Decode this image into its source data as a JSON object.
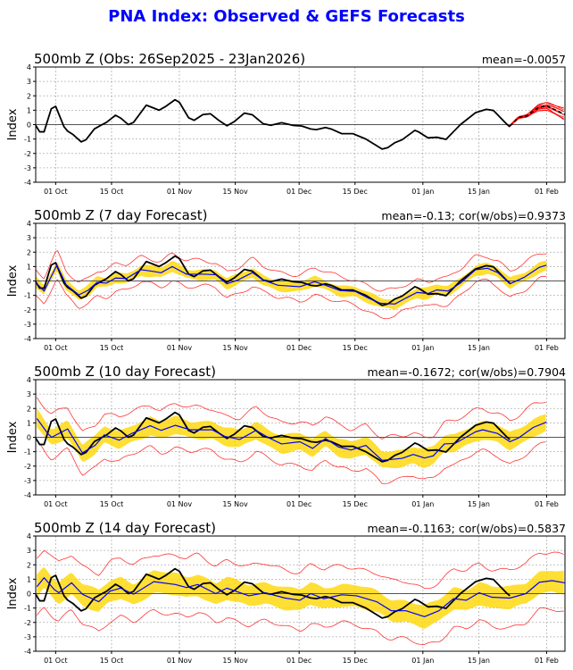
{
  "title": "PNA Index: Observed & GEFS Forecasts",
  "colors": {
    "title": "#0000ff",
    "observed": "#000000",
    "forecast": "#0000ff",
    "band": "#ffd700",
    "envelope": "#ff0000",
    "grid": "#b0b0b0"
  },
  "chart_data": [
    {
      "type": "line",
      "title": "500mb Z (Obs: 26Sep2025 - 23Jan2026)",
      "stat": "mean=-0.0057",
      "ylabel": "Index",
      "ylim": [
        -4,
        4
      ],
      "yticks": [
        -4,
        -3,
        -2,
        -1,
        0,
        1,
        2,
        3,
        4
      ],
      "x_unit": "days since 26Sep2025",
      "xlim": [
        0,
        132.6
      ],
      "xticks": [
        {
          "day": 5,
          "label": "01 Oct"
        },
        {
          "day": 19,
          "label": "15 Oct"
        },
        {
          "day": 36,
          "label": "01 Nov"
        },
        {
          "day": 50,
          "label": "15 Nov"
        },
        {
          "day": 66,
          "label": "01 Dec"
        },
        {
          "day": 80,
          "label": "15 Dec"
        },
        {
          "day": 97,
          "label": "01 Jan"
        },
        {
          "day": 111,
          "label": "15 Jan"
        },
        {
          "day": 128,
          "label": "01 Feb"
        }
      ],
      "grid": true,
      "observed": [
        [
          0,
          -0.05
        ],
        [
          1,
          -0.5
        ],
        [
          2.1,
          -0.5
        ],
        [
          3.9,
          1.1
        ],
        [
          5,
          1.27
        ],
        [
          7.1,
          -0.15
        ],
        [
          8,
          -0.45
        ],
        [
          9.4,
          -0.7
        ],
        [
          11.4,
          -1.2
        ],
        [
          12.6,
          -1.05
        ],
        [
          14.7,
          -0.3
        ],
        [
          16.3,
          -0.05
        ],
        [
          17.7,
          0.15
        ],
        [
          20,
          0.65
        ],
        [
          21.3,
          0.45
        ],
        [
          23.2,
          0.0
        ],
        [
          24.5,
          0.15
        ],
        [
          27.7,
          1.35
        ],
        [
          29.1,
          1.2
        ],
        [
          30.9,
          1.0
        ],
        [
          32.5,
          1.25
        ],
        [
          34.9,
          1.73
        ],
        [
          36,
          1.55
        ],
        [
          38.3,
          0.48
        ],
        [
          39.7,
          0.3
        ],
        [
          41.9,
          0.7
        ],
        [
          43.8,
          0.75
        ],
        [
          46,
          0.27
        ],
        [
          47.9,
          -0.08
        ],
        [
          49.7,
          0.2
        ],
        [
          52.3,
          0.8
        ],
        [
          54.3,
          0.68
        ],
        [
          57,
          0.06
        ],
        [
          58.9,
          -0.05
        ],
        [
          61.6,
          0.13
        ],
        [
          64.4,
          -0.05
        ],
        [
          66.7,
          -0.1
        ],
        [
          68.9,
          -0.3
        ],
        [
          70.3,
          -0.35
        ],
        [
          72.6,
          -0.2
        ],
        [
          74,
          -0.3
        ],
        [
          76.7,
          -0.63
        ],
        [
          79.5,
          -0.63
        ],
        [
          82.7,
          -1.0
        ],
        [
          86.8,
          -1.7
        ],
        [
          88.2,
          -1.6
        ],
        [
          90,
          -1.25
        ],
        [
          91.8,
          -1.05
        ],
        [
          95,
          -0.4
        ],
        [
          95.9,
          -0.5
        ],
        [
          98.3,
          -0.92
        ],
        [
          100.5,
          -0.88
        ],
        [
          102.8,
          -1.02
        ],
        [
          106.4,
          0
        ],
        [
          110.2,
          0.83
        ],
        [
          112.9,
          1.06
        ],
        [
          114.7,
          0.98
        ],
        [
          117.9,
          0.06
        ],
        [
          118.8,
          -0.15
        ]
      ],
      "ensemble_mean": [
        [
          118.8,
          -0.1
        ],
        [
          121,
          0.5
        ],
        [
          123,
          0.6
        ],
        [
          126,
          1.2
        ],
        [
          128,
          1.3
        ],
        [
          130,
          1.05
        ],
        [
          132.6,
          0.7
        ]
      ],
      "ensemble_spread": 0.4
    },
    {
      "type": "line",
      "title": "500mb Z (7 day Forecast)",
      "stat": "mean=-0.13; cor(w/obs)=0.9373",
      "ylabel": "Index",
      "ylim": [
        -4,
        4
      ],
      "xlim": [
        0,
        132.6
      ],
      "grid": true,
      "band_halfwidth": 0.35,
      "envelope_halfwidth": 0.9,
      "forecast": [
        [
          0,
          -0.1
        ],
        [
          2.1,
          -0.7
        ],
        [
          5.3,
          1.1
        ],
        [
          7.6,
          -0.25
        ],
        [
          10.8,
          -0.97
        ],
        [
          13.1,
          -0.65
        ],
        [
          15.4,
          -0.1
        ],
        [
          17.7,
          -0.15
        ],
        [
          20,
          0.2
        ],
        [
          22.7,
          0.17
        ],
        [
          26.4,
          0.78
        ],
        [
          29.1,
          0.68
        ],
        [
          31.4,
          0.57
        ],
        [
          34.2,
          1.0
        ],
        [
          37.8,
          0.47
        ],
        [
          42.4,
          0.47
        ],
        [
          45.1,
          0.43
        ],
        [
          47.9,
          -0.2
        ],
        [
          50.6,
          0.06
        ],
        [
          54.3,
          0.58
        ],
        [
          57,
          0.06
        ],
        [
          60.7,
          -0.3
        ],
        [
          66.2,
          -0.4
        ],
        [
          69.9,
          -0.05
        ],
        [
          72.6,
          -0.3
        ],
        [
          76.3,
          -0.67
        ],
        [
          80,
          -0.72
        ],
        [
          83.6,
          -1.22
        ],
        [
          86.4,
          -1.55
        ],
        [
          90,
          -1.6
        ],
        [
          92.8,
          -1.18
        ],
        [
          95.5,
          -0.8
        ],
        [
          98.3,
          -0.87
        ],
        [
          100.5,
          -0.62
        ],
        [
          103.3,
          -0.7
        ],
        [
          106.4,
          -0.15
        ],
        [
          110.2,
          0.78
        ],
        [
          113.2,
          0.88
        ],
        [
          115.8,
          0.58
        ],
        [
          118.8,
          -0.2
        ],
        [
          122.5,
          0.27
        ],
        [
          126.2,
          0.95
        ],
        [
          128,
          1.1
        ]
      ]
    },
    {
      "type": "line",
      "title": "500mb Z (10 day Forecast)",
      "stat": "mean=-0.1672; cor(w/obs)=0.7904",
      "ylabel": "Index",
      "ylim": [
        -4,
        4
      ],
      "xlim": [
        0,
        132.6
      ],
      "grid": true,
      "band_halfwidth": 0.6,
      "envelope_halfwidth": 1.5,
      "forecast": [
        [
          0.3,
          1.3
        ],
        [
          3,
          0.27
        ],
        [
          4,
          0
        ],
        [
          8,
          0.58
        ],
        [
          11.7,
          -1.08
        ],
        [
          14.9,
          -0.56
        ],
        [
          17.2,
          0.17
        ],
        [
          20.9,
          -0.2
        ],
        [
          24.1,
          0.27
        ],
        [
          28.7,
          0.8
        ],
        [
          31.4,
          0.48
        ],
        [
          35,
          0.83
        ],
        [
          38.7,
          0.52
        ],
        [
          44.2,
          0.52
        ],
        [
          47.4,
          0.06
        ],
        [
          51.1,
          -0.15
        ],
        [
          55.2,
          0.48
        ],
        [
          58.4,
          -0.04
        ],
        [
          61.6,
          -0.46
        ],
        [
          66.2,
          -0.31
        ],
        [
          69.4,
          -0.77
        ],
        [
          72.6,
          -0.08
        ],
        [
          75.8,
          -0.67
        ],
        [
          79,
          -0.88
        ],
        [
          82.7,
          -0.56
        ],
        [
          86.8,
          -1.6
        ],
        [
          91.8,
          -1.46
        ],
        [
          94.6,
          -1.19
        ],
        [
          97.4,
          -1.44
        ],
        [
          99.6,
          -1.29
        ],
        [
          102.4,
          -0.46
        ],
        [
          105.1,
          -0.42
        ],
        [
          110.2,
          0.38
        ],
        [
          112,
          0.52
        ],
        [
          115.7,
          0.27
        ],
        [
          118.8,
          -0.31
        ],
        [
          121,
          -0.04
        ],
        [
          124.7,
          0.69
        ],
        [
          128,
          1.06
        ]
      ]
    },
    {
      "type": "line",
      "title": "500mb Z (14 day Forecast)",
      "stat": "mean=-0.1163; cor(w/obs)=0.5837",
      "ylabel": "Index",
      "ylim": [
        -4,
        4
      ],
      "xlim": [
        0,
        132.6
      ],
      "grid": true,
      "band_halfwidth": 0.75,
      "envelope_halfwidth": 2.0,
      "forecast": [
        [
          0.3,
          0.48
        ],
        [
          2.1,
          1.1
        ],
        [
          4.7,
          0.27
        ],
        [
          5.8,
          0.06
        ],
        [
          9,
          0.75
        ],
        [
          11.7,
          -0.04
        ],
        [
          15.8,
          -0.56
        ],
        [
          18.6,
          0.17
        ],
        [
          21.3,
          0.38
        ],
        [
          24.5,
          -0.04
        ],
        [
          29.6,
          0.83
        ],
        [
          35,
          0.63
        ],
        [
          37.8,
          0.42
        ],
        [
          40.6,
          0.63
        ],
        [
          45.1,
          0
        ],
        [
          47.9,
          0.38
        ],
        [
          53.4,
          -0.15
        ],
        [
          57.5,
          0.06
        ],
        [
          62.5,
          -0.31
        ],
        [
          66.2,
          -0.46
        ],
        [
          68.9,
          0
        ],
        [
          72.2,
          -0.35
        ],
        [
          76.7,
          -0.08
        ],
        [
          80.4,
          -0.15
        ],
        [
          85.4,
          -0.56
        ],
        [
          89.1,
          -1.19
        ],
        [
          92.8,
          -1.19
        ],
        [
          97.4,
          -1.6
        ],
        [
          101,
          -1.19
        ],
        [
          104.7,
          -0.35
        ],
        [
          107.9,
          -0.46
        ],
        [
          111.1,
          0.06
        ],
        [
          114.3,
          -0.25
        ],
        [
          118.8,
          -0.31
        ],
        [
          122.8,
          0
        ],
        [
          126.2,
          0.79
        ],
        [
          129.4,
          0.9
        ],
        [
          132.6,
          0.75
        ]
      ]
    }
  ]
}
